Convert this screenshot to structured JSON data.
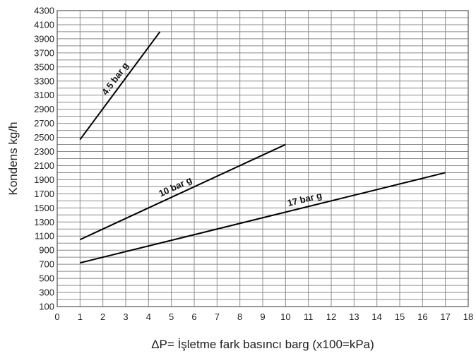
{
  "chart_data": {
    "type": "line",
    "title": "",
    "xlabel": "ΔP= İşletme fark basıncı barg (x100=kPa)",
    "ylabel": "Kondens kg/h",
    "xlim": [
      0,
      18
    ],
    "ylim": [
      100,
      4300
    ],
    "x_ticks": [
      0,
      1,
      2,
      3,
      4,
      5,
      6,
      7,
      8,
      9,
      10,
      11,
      12,
      13,
      14,
      15,
      16,
      17,
      18
    ],
    "y_ticks": [
      100,
      300,
      500,
      700,
      900,
      1100,
      1300,
      1500,
      1700,
      1900,
      2100,
      2300,
      2500,
      2700,
      2900,
      3100,
      3300,
      3500,
      3700,
      3900,
      4100,
      4300
    ],
    "grid": true,
    "x_grid_step": 1,
    "y_grid_step": 100,
    "series": [
      {
        "name": "4.5 bar g",
        "x": [
          1,
          4.5
        ],
        "y": [
          2470,
          4000
        ]
      },
      {
        "name": "10 bar g",
        "x": [
          1,
          10
        ],
        "y": [
          1050,
          2400
        ]
      },
      {
        "name": "17 bar g",
        "x": [
          1,
          17
        ],
        "y": [
          720,
          2000
        ]
      }
    ],
    "line_color": "#000000",
    "grid_color": "#8c8c8c"
  }
}
